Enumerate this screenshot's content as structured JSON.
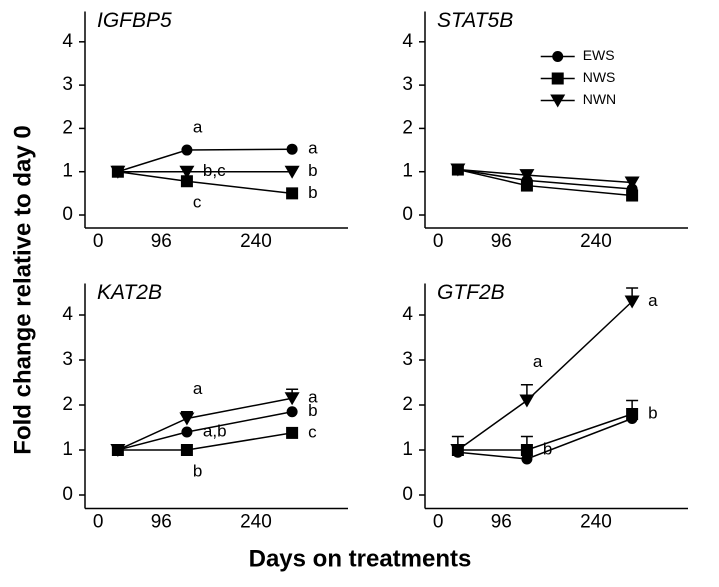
{
  "ylabel": "Fold change relative to day 0",
  "xlabel": "Days on treatments",
  "chart_data": [
    {
      "type": "line",
      "title": "IGFBP5",
      "xlim": [
        -20,
        380
      ],
      "xticks": [
        0,
        96,
        240
      ],
      "ylim": [
        -0.3,
        4.7
      ],
      "yticks": [
        0,
        1,
        2,
        3,
        4
      ],
      "x": [
        30,
        135,
        295
      ],
      "series": [
        {
          "marker": "circle",
          "color": "#000000",
          "values": [
            1.0,
            1.5,
            1.52
          ],
          "annotations": [
            null,
            "a",
            "a"
          ]
        },
        {
          "marker": "square",
          "color": "#000000",
          "values": [
            1.0,
            0.78,
            0.5
          ],
          "annotations": [
            null,
            "c",
            "b"
          ]
        },
        {
          "marker": "triangle",
          "color": "#000000",
          "values": [
            1.0,
            1.0,
            1.0
          ],
          "annotations": [
            null,
            "b,c",
            "b"
          ]
        }
      ]
    },
    {
      "type": "line",
      "title": "STAT5B",
      "xlim": [
        -20,
        380
      ],
      "xticks": [
        0,
        96,
        240
      ],
      "ylim": [
        -0.3,
        4.7
      ],
      "yticks": [
        0,
        1,
        2,
        3,
        4
      ],
      "x": [
        30,
        135,
        295
      ],
      "legend": "upper center",
      "series": [
        {
          "name": "EWS",
          "marker": "circle",
          "color": "#000000",
          "values": [
            1.05,
            0.8,
            0.6
          ]
        },
        {
          "name": "NWS",
          "marker": "square",
          "color": "#000000",
          "values": [
            1.05,
            0.68,
            0.45
          ]
        },
        {
          "name": "NWN",
          "marker": "triangle",
          "color": "#000000",
          "values": [
            1.05,
            0.92,
            0.75
          ]
        }
      ]
    },
    {
      "type": "line",
      "title": "KAT2B",
      "xlim": [
        -20,
        380
      ],
      "xticks": [
        0,
        96,
        240
      ],
      "ylim": [
        -0.3,
        4.7
      ],
      "yticks": [
        0,
        1,
        2,
        3,
        4
      ],
      "x": [
        30,
        135,
        295
      ],
      "series": [
        {
          "marker": "circle",
          "color": "#000000",
          "values": [
            1.0,
            1.4,
            1.85
          ],
          "annotations": [
            null,
            "a,b",
            "b"
          ]
        },
        {
          "marker": "square",
          "color": "#000000",
          "values": [
            1.0,
            1.0,
            1.38
          ],
          "annotations": [
            null,
            "b",
            "c"
          ]
        },
        {
          "marker": "triangle",
          "color": "#000000",
          "values": [
            1.0,
            1.7,
            2.15
          ],
          "errors": [
            null,
            0.15,
            0.2
          ],
          "annotations": [
            null,
            "a",
            "a"
          ]
        }
      ]
    },
    {
      "type": "line",
      "title": "GTF2B",
      "xlim": [
        -20,
        380
      ],
      "xticks": [
        0,
        96,
        240
      ],
      "ylim": [
        -0.3,
        4.7
      ],
      "yticks": [
        0,
        1,
        2,
        3,
        4
      ],
      "x": [
        30,
        135,
        295
      ],
      "series": [
        {
          "marker": "circle",
          "color": "#000000",
          "values": [
            0.95,
            0.8,
            1.7
          ]
        },
        {
          "marker": "square",
          "color": "#000000",
          "values": [
            1.0,
            1.0,
            1.8
          ],
          "errors": [
            0.3,
            0.3,
            0.3
          ],
          "annotations": [
            null,
            "b",
            "b"
          ]
        },
        {
          "marker": "triangle",
          "color": "#000000",
          "values": [
            1.0,
            2.1,
            4.3
          ],
          "errors": [
            null,
            0.35,
            0.3
          ],
          "annotations": [
            null,
            "a",
            "a"
          ]
        }
      ]
    }
  ]
}
